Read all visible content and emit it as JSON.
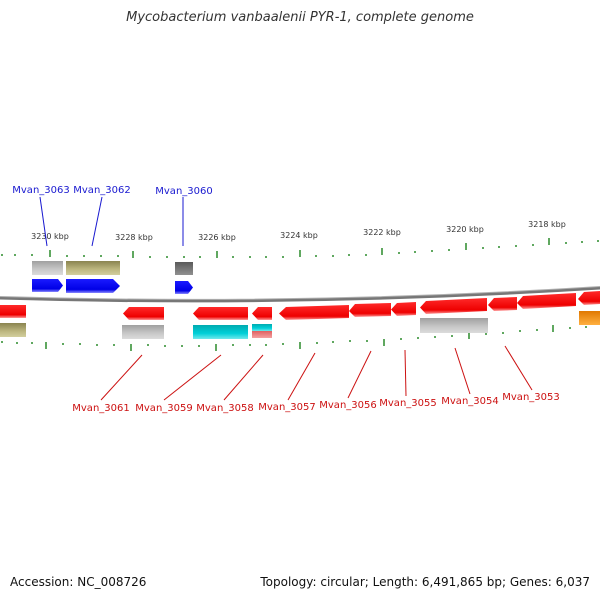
{
  "title": "Mycobacterium vanbaalenii PYR-1, complete genome",
  "accession_text": "Accession: NC_008726",
  "stats_text": "Topology: circular; Length: 6,491,865 bp; Genes: 6,037",
  "colors": {
    "forward_label": "#1a1ad0",
    "reverse_label": "#cc1111",
    "backbone": "#888888",
    "tick": "#2a8a2a"
  },
  "scale_labels": [
    "3230 kbp",
    "3228 kbp",
    "3226 kbp",
    "3224 kbp",
    "3222 kbp",
    "3220 kbp",
    "3218 kbp"
  ],
  "forward_gene_labels": [
    "Mvan_3063",
    "Mvan_3062",
    "Mvan_3060"
  ],
  "reverse_gene_labels": [
    "Mvan_3061",
    "Mvan_3059",
    "Mvan_3058",
    "Mvan_3057",
    "Mvan_3056",
    "Mvan_3055",
    "Mvan_3054",
    "Mvan_3053"
  ]
}
